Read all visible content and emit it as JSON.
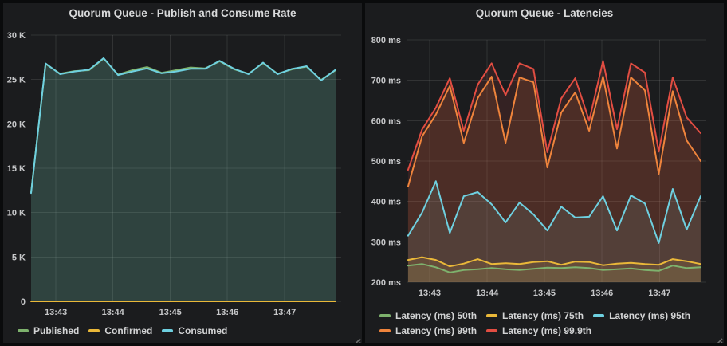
{
  "dashboard": {
    "panels": [
      {
        "title": "Quorum Queue - Publish and Consume Rate"
      },
      {
        "title": "Quorum Queue - Latencies"
      }
    ]
  },
  "chart_data": [
    {
      "type": "line",
      "title": "Quorum Queue - Publish and Consume Rate",
      "xlabel": "",
      "ylabel": "",
      "ylim": [
        0,
        30000
      ],
      "grid": true,
      "legend_position": "bottom-left",
      "x_tick_labels": [
        "13:43",
        "13:44",
        "13:45",
        "13:46",
        "13:47"
      ],
      "y_tick_labels": [
        "30 K",
        "25 K",
        "20 K",
        "15 K",
        "10 K",
        "5 K",
        "0"
      ],
      "series": [
        {
          "name": "Published",
          "color": "#7EB26D",
          "values": [
            12300,
            26750,
            25650,
            25950,
            26050,
            27350,
            25550,
            26050,
            26400,
            25750,
            26050,
            26350,
            26250,
            27050,
            26150,
            25650,
            26850,
            25650,
            26150,
            26450,
            24950,
            26050
          ]
        },
        {
          "name": "Confirmed",
          "color": "#EAB839",
          "values": [
            0,
            0,
            0,
            0,
            0,
            0,
            0,
            0,
            0,
            0,
            0,
            0,
            0,
            0,
            0,
            0,
            0,
            0,
            0,
            0,
            0,
            0
          ]
        },
        {
          "name": "Consumed",
          "color": "#6ED0E0",
          "values": [
            12200,
            26800,
            25600,
            25900,
            26100,
            27400,
            25500,
            25900,
            26250,
            25700,
            25900,
            26200,
            26200,
            27100,
            26200,
            25600,
            26900,
            25600,
            26200,
            26500,
            24900,
            26100
          ]
        }
      ]
    },
    {
      "type": "line",
      "title": "Quorum Queue - Latencies",
      "xlabel": "",
      "ylabel": "",
      "unit": "ms",
      "ylim": [
        200,
        800
      ],
      "grid": true,
      "legend_position": "bottom-left",
      "x_tick_labels": [
        "13:43",
        "13:44",
        "13:45",
        "13:46",
        "13:47"
      ],
      "y_tick_labels": [
        "800 ms",
        "700 ms",
        "600 ms",
        "500 ms",
        "400 ms",
        "300 ms",
        "200 ms"
      ],
      "series": [
        {
          "name": "Latency (ms) 50th",
          "color": "#7EB26D",
          "values": [
            241,
            245,
            237,
            224,
            230,
            232,
            235,
            232,
            230,
            233,
            236,
            235,
            237,
            235,
            230,
            232,
            234,
            230,
            228,
            241,
            235,
            237
          ]
        },
        {
          "name": "Latency (ms) 75th",
          "color": "#EAB839",
          "values": [
            255,
            262,
            255,
            239,
            246,
            257,
            245,
            247,
            245,
            250,
            252,
            243,
            251,
            250,
            242,
            246,
            248,
            245,
            243,
            257,
            252,
            245
          ]
        },
        {
          "name": "Latency (ms) 95th",
          "color": "#6ED0E0",
          "values": [
            315,
            372,
            450,
            322,
            413,
            423,
            393,
            348,
            397,
            368,
            328,
            387,
            360,
            362,
            413,
            328,
            415,
            395,
            297,
            431,
            330,
            413
          ]
        },
        {
          "name": "Latency (ms) 99th",
          "color": "#EF843C",
          "values": [
            437,
            561,
            615,
            686,
            545,
            656,
            709,
            545,
            707,
            695,
            484,
            620,
            670,
            575,
            709,
            531,
            707,
            675,
            468,
            673,
            551,
            500
          ]
        },
        {
          "name": "Latency (ms) 99.9th",
          "color": "#E24D42",
          "values": [
            478,
            578,
            632,
            705,
            575,
            689,
            742,
            663,
            742,
            728,
            522,
            655,
            705,
            600,
            748,
            579,
            742,
            719,
            523,
            707,
            608,
            569
          ]
        }
      ]
    }
  ]
}
